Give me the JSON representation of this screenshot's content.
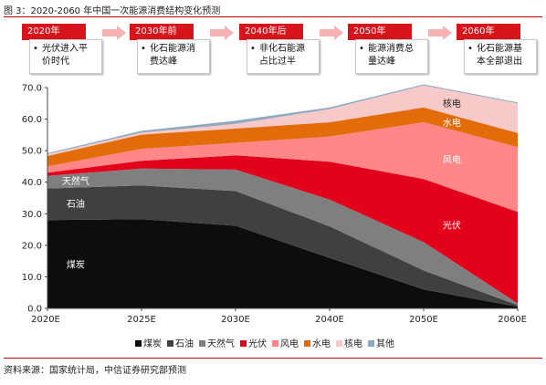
{
  "figure_title": "图 3：2020-2060 年中国一次能源消费结构变化预测",
  "source": "资料来源：国家统计局，中信证券研究部预测",
  "timeline": [
    {
      "year": "2020年",
      "lines": [
        "光伏进入平",
        "价时代"
      ]
    },
    {
      "year": "2030年前",
      "lines": [
        "化石能源消",
        "费达峰"
      ]
    },
    {
      "year": "2040年后",
      "lines": [
        "非化石能源",
        "占比过半"
      ]
    },
    {
      "year": "2050年",
      "lines": [
        "能源消费总",
        "量达峰"
      ]
    },
    {
      "year": "2060年",
      "lines": [
        "化石能源基",
        "本全部退出"
      ]
    }
  ],
  "colors": {
    "accent_red": "#d7131b",
    "煤炭": "#0d0d0d",
    "石油": "#404040",
    "天然气": "#7f7f7f",
    "光伏": "#e3001b",
    "风电": "#ff8787",
    "水电": "#e36c0a",
    "核电": "#f7c9c9",
    "其他": "#8ea9c1"
  },
  "chart_data": {
    "type": "area",
    "stacked": true,
    "title": "",
    "xlabel": "",
    "ylabel": "",
    "categories": [
      "2020E",
      "2025E",
      "2030E",
      "2040E",
      "2050E",
      "2060E"
    ],
    "ylim": [
      0,
      70
    ],
    "yticks": [
      "0.0",
      "10.0",
      "20.0",
      "30.0",
      "40.0",
      "50.0",
      "60.0",
      "70.0"
    ],
    "grid": false,
    "legend_position": "bottom",
    "series": [
      {
        "name": "煤炭",
        "values": [
          28.0,
          28.3,
          26.2,
          16.0,
          6.0,
          0.5
        ],
        "label_color": "#ffffff"
      },
      {
        "name": "石油",
        "values": [
          10.0,
          10.7,
          11.0,
          10.0,
          6.0,
          0.5
        ],
        "label_color": "#ffffff"
      },
      {
        "name": "天然气",
        "values": [
          4.0,
          5.3,
          6.8,
          8.5,
          9.0,
          0.6
        ],
        "label_color": "#ffffff"
      },
      {
        "name": "光伏",
        "values": [
          1.0,
          2.5,
          4.5,
          12.0,
          20.0,
          29.0
        ],
        "label_color": "#ffffff"
      },
      {
        "name": "风电",
        "values": [
          2.0,
          3.8,
          4.0,
          8.0,
          18.0,
          20.5
        ],
        "label_color": "#ffffff"
      },
      {
        "name": "水电",
        "values": [
          3.3,
          4.5,
          4.5,
          4.5,
          4.7,
          4.5
        ],
        "label_color": "#ffffff"
      },
      {
        "name": "核电",
        "values": [
          0.6,
          0.6,
          1.5,
          4.2,
          7.0,
          9.4
        ],
        "label_color": "#222222"
      },
      {
        "name": "其他",
        "values": [
          0.3,
          0.6,
          1.0,
          0.5,
          0.3,
          0.3
        ],
        "label_color": "#222222"
      }
    ],
    "area_labels": [
      {
        "series": "煤炭",
        "text": "煤炭"
      },
      {
        "series": "石油",
        "text": "石油"
      },
      {
        "series": "天然气",
        "text": "天然气"
      },
      {
        "series": "光伏",
        "text": "光伏"
      },
      {
        "series": "风电",
        "text": "风电"
      },
      {
        "series": "水电",
        "text": "水电"
      },
      {
        "series": "核电",
        "text": "核电"
      }
    ]
  }
}
